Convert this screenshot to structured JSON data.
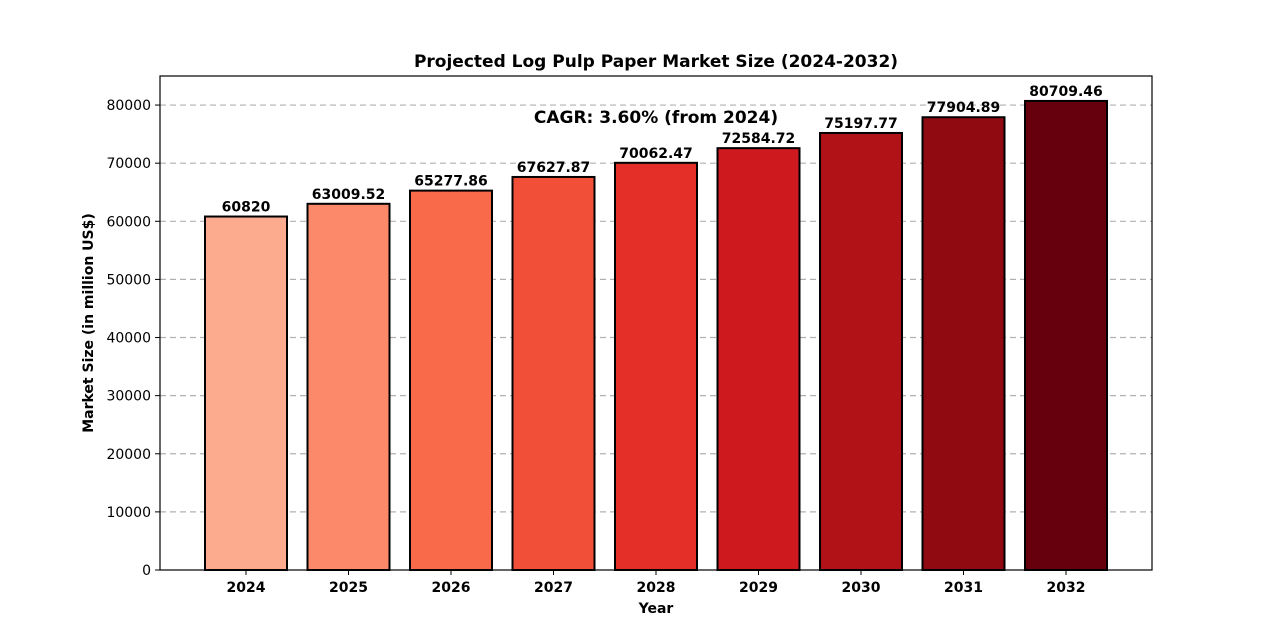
{
  "chart_data": {
    "type": "bar",
    "title": "Projected Log Pulp Paper Market Size (2024-2032)",
    "xlabel": "Year",
    "ylabel": "Market Size (in million US$)",
    "categories": [
      "2024",
      "2025",
      "2026",
      "2027",
      "2028",
      "2029",
      "2030",
      "2031",
      "2032"
    ],
    "values": [
      60820,
      63009.52,
      65277.86,
      67627.87,
      70062.47,
      72584.72,
      75197.77,
      77904.89,
      80709.46
    ],
    "value_labels": [
      "60820",
      "63009.52",
      "65277.86",
      "67627.87",
      "70062.47",
      "72584.72",
      "75197.77",
      "77904.89",
      "80709.46"
    ],
    "bar_colors": [
      "#fcab8f",
      "#fc8a6a",
      "#f96a4b",
      "#f14f38",
      "#e32f27",
      "#ce1a1e",
      "#b11218",
      "#900a12",
      "#67000d"
    ],
    "ylim": [
      0,
      85000
    ],
    "yticks": [
      0,
      10000,
      20000,
      30000,
      40000,
      50000,
      60000,
      70000,
      80000
    ],
    "grid": true,
    "annotation": "CAGR: 3.60% (from 2024)"
  }
}
